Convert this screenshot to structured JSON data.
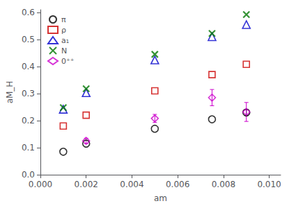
{
  "chart_data": {
    "type": "scatter",
    "xlabel": "am",
    "ylabel": "aM_H",
    "xlim": [
      0.0,
      0.0105
    ],
    "ylim": [
      0.0,
      0.61
    ],
    "xticks": [
      {
        "value": 0.0,
        "label": "0.000"
      },
      0.002,
      0.004,
      0.006,
      0.008,
      {
        "value": 0.01,
        "label": "0.010"
      }
    ],
    "yticks": [
      {
        "value": 0.0,
        "label": "0.0"
      },
      0.1,
      0.2,
      0.3,
      0.4,
      0.5,
      0.6
    ],
    "grid": false,
    "legend": "upper left",
    "series": [
      {
        "name": "π",
        "color": "black",
        "marker": "circle",
        "x": [
          0.001,
          0.002,
          0.005,
          0.0075,
          0.009
        ],
        "values": [
          0.085,
          0.115,
          0.17,
          0.205,
          0.23
        ],
        "yerr": [
          0,
          0,
          0,
          0,
          0.01
        ]
      },
      {
        "name": "ρ",
        "color": "#cc0000",
        "marker": "square",
        "x": [
          0.001,
          0.002,
          0.005,
          0.0075,
          0.009
        ],
        "values": [
          0.18,
          0.22,
          0.31,
          0.37,
          0.408
        ],
        "yerr": [
          0,
          0,
          0,
          0,
          0
        ]
      },
      {
        "name": "a₁",
        "color": "#0000cc",
        "marker": "triangle",
        "x": [
          0.001,
          0.002,
          0.005,
          0.0075,
          0.009
        ],
        "values": [
          0.242,
          0.303,
          0.424,
          0.51,
          0.555
        ],
        "yerr": [
          0,
          0,
          0,
          0,
          0
        ]
      },
      {
        "name": "N",
        "color": "#007700",
        "marker": "x",
        "x": [
          0.001,
          0.002,
          0.005,
          0.0075,
          0.009
        ],
        "values": [
          0.248,
          0.318,
          0.445,
          0.522,
          0.592
        ],
        "yerr": [
          0,
          0,
          0,
          0,
          0
        ]
      },
      {
        "name": "0⁺⁺",
        "color": "#cc00cc",
        "marker": "diamond",
        "x": [
          0.002,
          0.005,
          0.0075,
          0.009
        ],
        "values": [
          0.125,
          0.208,
          0.285,
          0.232
        ],
        "yerr": [
          0.01,
          0.015,
          0.03,
          0.035
        ]
      }
    ]
  }
}
